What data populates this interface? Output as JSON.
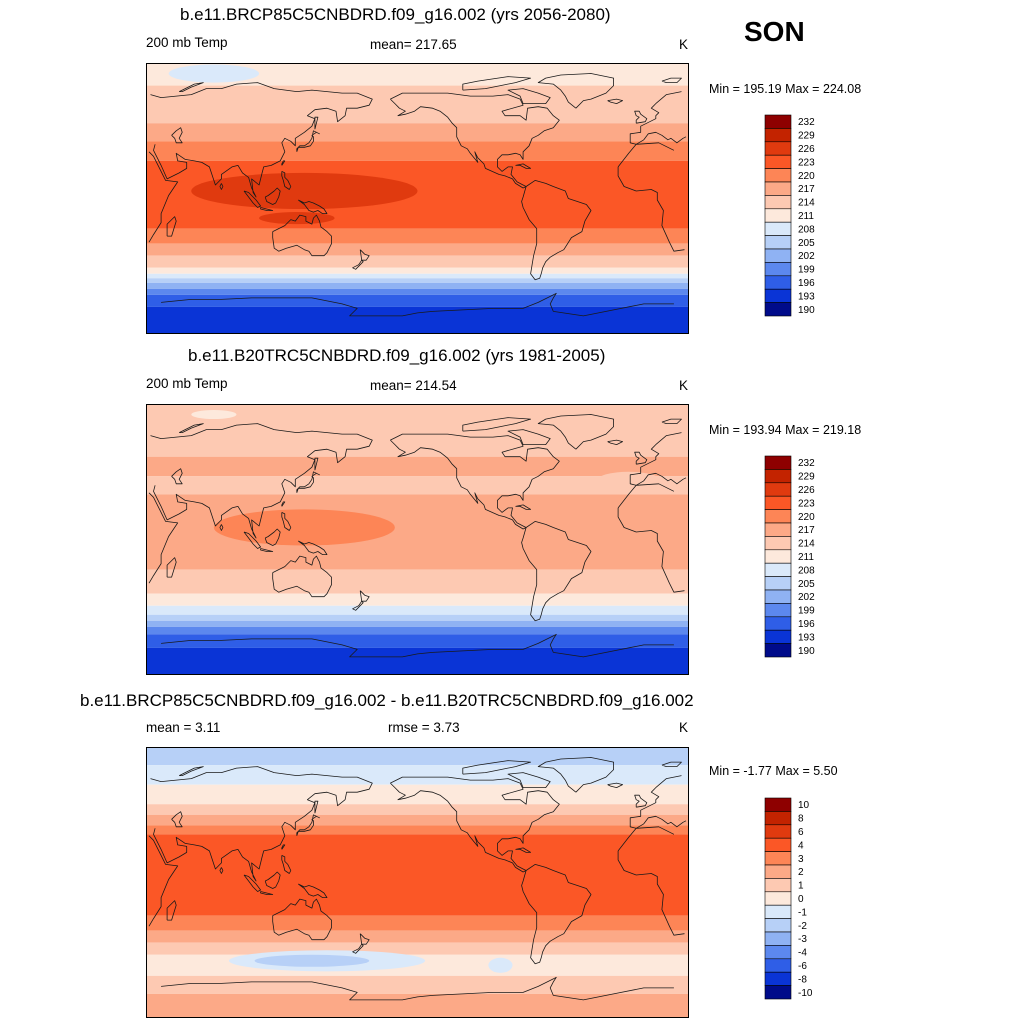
{
  "season": "SON",
  "panels": [
    {
      "title": "b.e11.BRCP85C5CNBDRD.f09_g16.002 (yrs 2056-2080)",
      "variable": "200 mb Temp",
      "stat1": "mean= 217.65",
      "stat2": "",
      "units": "K",
      "minmax": "Min = 195.19 Max = 224.08",
      "legend": [
        "232",
        "229",
        "226",
        "223",
        "220",
        "217",
        "214",
        "211",
        "208",
        "205",
        "202",
        "199",
        "196",
        "193",
        "190"
      ],
      "bands": [
        {
          "lat_n": 90,
          "lat_s": 75,
          "level": "211"
        },
        {
          "lat_n": 75,
          "lat_s": 50,
          "level": "214"
        },
        {
          "lat_n": 50,
          "lat_s": 38,
          "level": "217"
        },
        {
          "lat_n": 38,
          "lat_s": 25,
          "level": "220"
        },
        {
          "lat_n": 25,
          "lat_s": -20,
          "level": "223"
        },
        {
          "lat_n": -20,
          "lat_s": -30,
          "level": "220"
        },
        {
          "lat_n": -30,
          "lat_s": -38,
          "level": "217"
        },
        {
          "lat_n": -38,
          "lat_s": -46,
          "level": "214"
        },
        {
          "lat_n": -46,
          "lat_s": -50,
          "level": "211"
        },
        {
          "lat_n": -50,
          "lat_s": -53,
          "level": "208"
        },
        {
          "lat_n": -53,
          "lat_s": -56,
          "level": "205"
        },
        {
          "lat_n": -56,
          "lat_s": -60,
          "level": "202"
        },
        {
          "lat_n": -60,
          "lat_s": -64,
          "level": "199"
        },
        {
          "lat_n": -64,
          "lat_s": -72,
          "level": "196"
        },
        {
          "lat_n": -72,
          "lat_s": -90,
          "level": "193"
        }
      ],
      "blobs": [
        {
          "lon": 135,
          "lat": 5,
          "dlon": 75,
          "dlat": 12,
          "level": "226"
        },
        {
          "lon": 130,
          "lat": -13,
          "dlon": 25,
          "dlat": 4,
          "level": "226"
        },
        {
          "lon": 75,
          "lat": 83,
          "dlon": 30,
          "dlat": 6,
          "level": "208"
        }
      ]
    },
    {
      "title": "b.e11.B20TRC5CNBDRD.f09_g16.002 (yrs 1981-2005)",
      "variable": "200 mb Temp",
      "stat1": "mean= 214.54",
      "stat2": "",
      "units": "K",
      "minmax": "Min = 193.94 Max = 219.18",
      "legend": [
        "232",
        "229",
        "226",
        "223",
        "220",
        "217",
        "214",
        "211",
        "208",
        "205",
        "202",
        "199",
        "196",
        "193",
        "190"
      ],
      "bands": [
        {
          "lat_n": 90,
          "lat_s": 55,
          "level": "214"
        },
        {
          "lat_n": 55,
          "lat_s": 42,
          "level": "217"
        },
        {
          "lat_n": 42,
          "lat_s": 30,
          "level": "214"
        },
        {
          "lat_n": 30,
          "lat_s": -20,
          "level": "217"
        },
        {
          "lat_n": -20,
          "lat_s": -36,
          "level": "214"
        },
        {
          "lat_n": -36,
          "lat_s": -44,
          "level": "211"
        },
        {
          "lat_n": -44,
          "lat_s": -50,
          "level": "208"
        },
        {
          "lat_n": -50,
          "lat_s": -54,
          "level": "205"
        },
        {
          "lat_n": -54,
          "lat_s": -58,
          "level": "202"
        },
        {
          "lat_n": -58,
          "lat_s": -63,
          "level": "199"
        },
        {
          "lat_n": -63,
          "lat_s": -72,
          "level": "196"
        },
        {
          "lat_n": -72,
          "lat_s": -90,
          "level": "193"
        }
      ],
      "blobs": [
        {
          "lon": 135,
          "lat": 8,
          "dlon": 60,
          "dlat": 12,
          "level": "220"
        },
        {
          "lon": 75,
          "lat": 83,
          "dlon": 15,
          "dlat": 3,
          "level": "211"
        },
        {
          "lon": -10,
          "lat": 40,
          "dlon": 20,
          "dlat": 5,
          "level": "214"
        }
      ]
    },
    {
      "title": "b.e11.BRCP85C5CNBDRD.f09_g16.002 - b.e11.B20TRC5CNBDRD.f09_g16.002",
      "variable": "mean =   3.11",
      "stat1": "rmse =   3.73",
      "stat2": "",
      "units": "K",
      "minmax": "Min =  -1.77 Max =   5.50",
      "legend": [
        "10",
        "8",
        "6",
        "4",
        "3",
        "2",
        "1",
        "0",
        "-1",
        "-2",
        "-3",
        "-4",
        "-6",
        "-8",
        "-10"
      ],
      "bands": [
        {
          "lat_n": 90,
          "lat_s": 78,
          "level": "-2"
        },
        {
          "lat_n": 78,
          "lat_s": 65,
          "level": "-1"
        },
        {
          "lat_n": 65,
          "lat_s": 52,
          "level": "0"
        },
        {
          "lat_n": 52,
          "lat_s": 45,
          "level": "1"
        },
        {
          "lat_n": 45,
          "lat_s": 38,
          "level": "2"
        },
        {
          "lat_n": 38,
          "lat_s": 32,
          "level": "3"
        },
        {
          "lat_n": 32,
          "lat_s": -22,
          "level": "4"
        },
        {
          "lat_n": -22,
          "lat_s": -32,
          "level": "3"
        },
        {
          "lat_n": -32,
          "lat_s": -40,
          "level": "2"
        },
        {
          "lat_n": -40,
          "lat_s": -48,
          "level": "1"
        },
        {
          "lat_n": -48,
          "lat_s": -62,
          "level": "0"
        },
        {
          "lat_n": -62,
          "lat_s": -74,
          "level": "1"
        },
        {
          "lat_n": -74,
          "lat_s": -90,
          "level": "2"
        }
      ],
      "blobs": [
        {
          "lon": 150,
          "lat": -52,
          "dlon": 65,
          "dlat": 7,
          "level": "-1"
        },
        {
          "lon": 140,
          "lat": -52,
          "dlon": 38,
          "dlat": 4,
          "level": "-2"
        },
        {
          "lon": -95,
          "lat": -55,
          "dlon": 8,
          "dlat": 5,
          "level": "-1"
        }
      ]
    }
  ],
  "colors": {
    "temp_scale": {
      "232": "#8e0000",
      "229": "#c32300",
      "226": "#e03a0f",
      "223": "#fb5726",
      "220": "#fd8556",
      "217": "#fca987",
      "214": "#fdc9b2",
      "211": "#fde9dc",
      "208": "#dae9fa",
      "205": "#b7d0f7",
      "202": "#8fb2f3",
      "199": "#5c88ee",
      "196": "#2f5ee7",
      "193": "#0a34d6",
      "190": "#000b8a"
    },
    "diff_scale": {
      "10": "#8e0000",
      "8": "#c32300",
      "6": "#e03a0f",
      "4": "#fb5726",
      "3": "#fd8556",
      "2": "#fca987",
      "1": "#fdc9b2",
      "0": "#fde9dc",
      "-1": "#dae9fa",
      "-2": "#b7d0f7",
      "-3": "#8fb2f3",
      "-4": "#5c88ee",
      "-6": "#2f5ee7",
      "-8": "#0a34d6",
      "-10": "#000b8a"
    },
    "coast": "#1a1a1a"
  }
}
